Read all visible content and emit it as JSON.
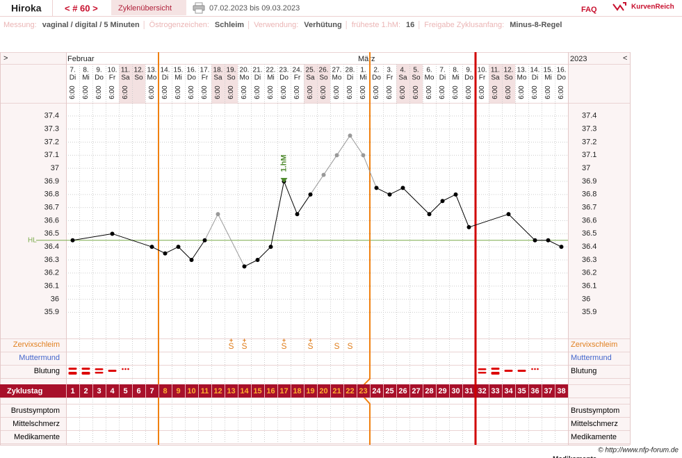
{
  "header": {
    "name": "Hiroka",
    "cycle": "< # 60 >",
    "tab": "Zyklenübersicht",
    "range": "07.02.2023 bis 09.03.2023",
    "faq": "FAQ",
    "logo": "KurvenReich"
  },
  "info": [
    {
      "label": "Messung:",
      "value": "vaginal / digital / 5 Minuten"
    },
    {
      "label": "Östrogenzeichen:",
      "value": "Schleim"
    },
    {
      "label": "Verwendung:",
      "value": "Verhütung"
    },
    {
      "label": "früheste 1.hM:",
      "value": 16
    },
    {
      "label": "Freigabe Zyklusanfang:",
      "value": "Minus-8-Regel"
    }
  ],
  "footer": {
    "copyright": "© http://www.nfp-forum.de",
    "cut_label": "Medikamente"
  },
  "chart_data": {
    "type": "line",
    "nav_left": ">",
    "nav_right": "<",
    "year": "2023",
    "months": [
      {
        "label": "Februar",
        "day": 1
      },
      {
        "label": "März",
        "day": 23
      }
    ],
    "dates": [
      "7.",
      "8.",
      "9.",
      "10.",
      "11.",
      "12.",
      "13.",
      "14.",
      "15.",
      "16.",
      "17.",
      "18.",
      "19.",
      "20.",
      "21.",
      "22.",
      "23.",
      "24.",
      "25.",
      "26.",
      "27.",
      "28.",
      "1.",
      "2.",
      "3.",
      "4.",
      "5.",
      "6.",
      "7.",
      "8.",
      "9.",
      "10.",
      "11.",
      "12.",
      "13.",
      "14.",
      "15.",
      "16."
    ],
    "weekdays": [
      "Di",
      "Mi",
      "Do",
      "Fr",
      "Sa",
      "So",
      "Mo",
      "Di",
      "Mi",
      "Do",
      "Fr",
      "Sa",
      "So",
      "Mo",
      "Di",
      "Mi",
      "Do",
      "Fr",
      "Sa",
      "So",
      "Mo",
      "Di",
      "Mi",
      "Do",
      "Fr",
      "Sa",
      "So",
      "Mo",
      "Di",
      "Mi",
      "Do",
      "Fr",
      "Sa",
      "So",
      "Mo",
      "Di",
      "Mi",
      "Do"
    ],
    "times": [
      "6:00",
      "6:00",
      "6:00",
      "6:00",
      "6:00",
      null,
      "6:00",
      "6:00",
      "6:00",
      "6:00",
      "6:00",
      "6:00",
      "6:00",
      "6:00",
      "6:00",
      "6:00",
      "6:00",
      "6:00",
      "6:00",
      "6:00",
      "6:00",
      "6:00",
      "6:00",
      "6:00",
      "6:00",
      "6:00",
      "6:00",
      "6:00",
      "6:00",
      "6:00",
      "6:00",
      "6:00",
      "6:00",
      "6:00",
      "6:00",
      "6:00",
      "6:00",
      "6:00"
    ],
    "ylim": [
      35.7,
      37.5
    ],
    "yticks": [
      37.4,
      37.3,
      37.2,
      37.1,
      37,
      36.9,
      36.8,
      36.7,
      36.6,
      36.5,
      36.4,
      36.3,
      36.2,
      36.1,
      36,
      35.9
    ],
    "grid": true,
    "series": [
      {
        "color": "#000000",
        "excluded_color": "#999999",
        "excluded_days": [
          12,
          20,
          21,
          22,
          23
        ],
        "values": [
          36.45,
          null,
          null,
          36.5,
          null,
          null,
          36.4,
          36.35,
          36.4,
          36.3,
          36.45,
          36.65,
          null,
          36.25,
          36.3,
          36.4,
          36.9,
          36.65,
          36.8,
          36.95,
          37.1,
          37.25,
          37.1,
          36.85,
          36.8,
          36.85,
          null,
          36.65,
          36.75,
          36.8,
          36.55,
          null,
          null,
          36.65,
          null,
          36.45,
          36.45,
          36.4
        ]
      }
    ],
    "hl": {
      "label": "HL",
      "value": 36.45,
      "color": "#7aaa4a"
    },
    "first_hm": {
      "label": "1.hM",
      "day": 17,
      "color": "#4f8a2e"
    },
    "rows": {
      "zervix": "Zervixschleim",
      "muttermund": "Muttermund",
      "blutung": "Blutung",
      "zyklustag": "Zyklustag",
      "brust": "Brustsymptom",
      "mittelschmerz": "Mittelschmerz",
      "medikamente": "Medikamente"
    },
    "zervixschleim": [
      null,
      null,
      null,
      null,
      null,
      null,
      null,
      null,
      null,
      null,
      null,
      null,
      {
        "sign": "S",
        "plus": "+"
      },
      {
        "sign": "S",
        "plus": "+"
      },
      null,
      null,
      {
        "sign": "S",
        "plus": "+"
      },
      null,
      {
        "sign": "S",
        "plus": "+"
      },
      null,
      {
        "sign": "S"
      },
      {
        "sign": "S"
      },
      null,
      null,
      null,
      null,
      null,
      null,
      null,
      null,
      null,
      null,
      null,
      null,
      null,
      null,
      null,
      null
    ],
    "blutung": [
      4,
      4,
      3,
      2,
      1,
      null,
      null,
      null,
      null,
      null,
      null,
      null,
      null,
      null,
      null,
      null,
      null,
      null,
      null,
      null,
      null,
      null,
      null,
      null,
      null,
      null,
      null,
      null,
      null,
      null,
      null,
      3,
      4,
      2,
      2,
      1,
      null,
      null
    ],
    "zyklustag": [
      1,
      2,
      3,
      4,
      5,
      6,
      7,
      8,
      9,
      10,
      11,
      12,
      13,
      14,
      15,
      16,
      17,
      18,
      19,
      20,
      21,
      22,
      23,
      24,
      25,
      26,
      27,
      28,
      29,
      30,
      31,
      32,
      33,
      34,
      35,
      36,
      37,
      38
    ],
    "orange_lines": [
      7,
      23
    ],
    "red_line": 31
  }
}
